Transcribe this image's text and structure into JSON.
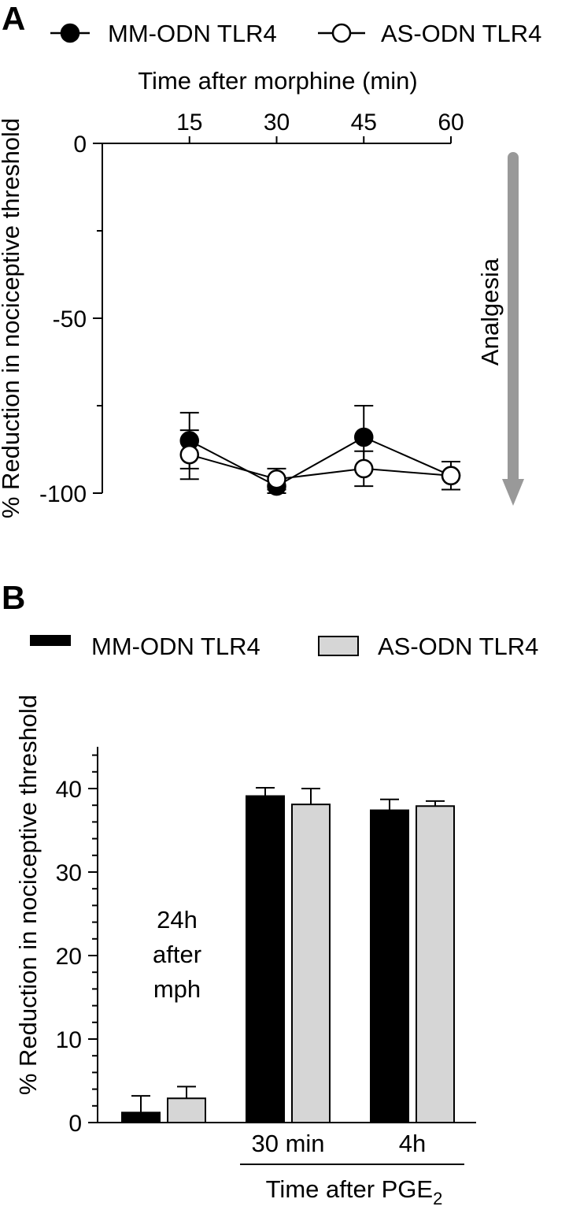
{
  "colors": {
    "mm": "#000000",
    "as_marker": "#ffffff",
    "as_bar": "#d6d6d6",
    "arrow": "#999999"
  },
  "chart_data": [
    {
      "panel": "A",
      "type": "line",
      "xlabel": "Time after morphine (min)",
      "ylabel": "% Reduction in nociceptive threshold",
      "x": [
        15,
        30,
        45,
        60
      ],
      "xlim": [
        0,
        60
      ],
      "ylim": [
        -100,
        0
      ],
      "y_ticks": [
        0,
        -50,
        -100
      ],
      "legend_position": "top",
      "annotation": "Analgesia",
      "series": [
        {
          "name": "MM-ODN TLR4",
          "marker": "filled-circle",
          "values": [
            -85,
            -98,
            -84,
            -95
          ],
          "errors": [
            8,
            2,
            9,
            4
          ]
        },
        {
          "name": "AS-ODN TLR4",
          "marker": "open-circle",
          "values": [
            -89,
            -96,
            -93,
            -95
          ],
          "errors": [
            7,
            3,
            5,
            4
          ]
        }
      ]
    },
    {
      "panel": "B",
      "type": "bar",
      "ylabel": "% Reduction in nociceptive threshold",
      "xlabel": "Time after PGE",
      "xlabel_subscript": "2",
      "ylim": [
        0,
        45
      ],
      "y_ticks": [
        0,
        10,
        20,
        30,
        40
      ],
      "legend_position": "top",
      "categories": [
        "24h after mph",
        "30 min",
        "4h"
      ],
      "annotation_lines": [
        "24h",
        "after",
        "mph"
      ],
      "category_tick_labels": [
        "30 min",
        "4h"
      ],
      "series": [
        {
          "name": "MM-ODN TLR4",
          "values": [
            1.2,
            39.1,
            37.4
          ],
          "errors": [
            2.0,
            1.0,
            1.3
          ]
        },
        {
          "name": "AS-ODN TLR4",
          "values": [
            2.9,
            38.1,
            37.9
          ],
          "errors": [
            1.4,
            1.9,
            0.6
          ]
        }
      ]
    }
  ]
}
